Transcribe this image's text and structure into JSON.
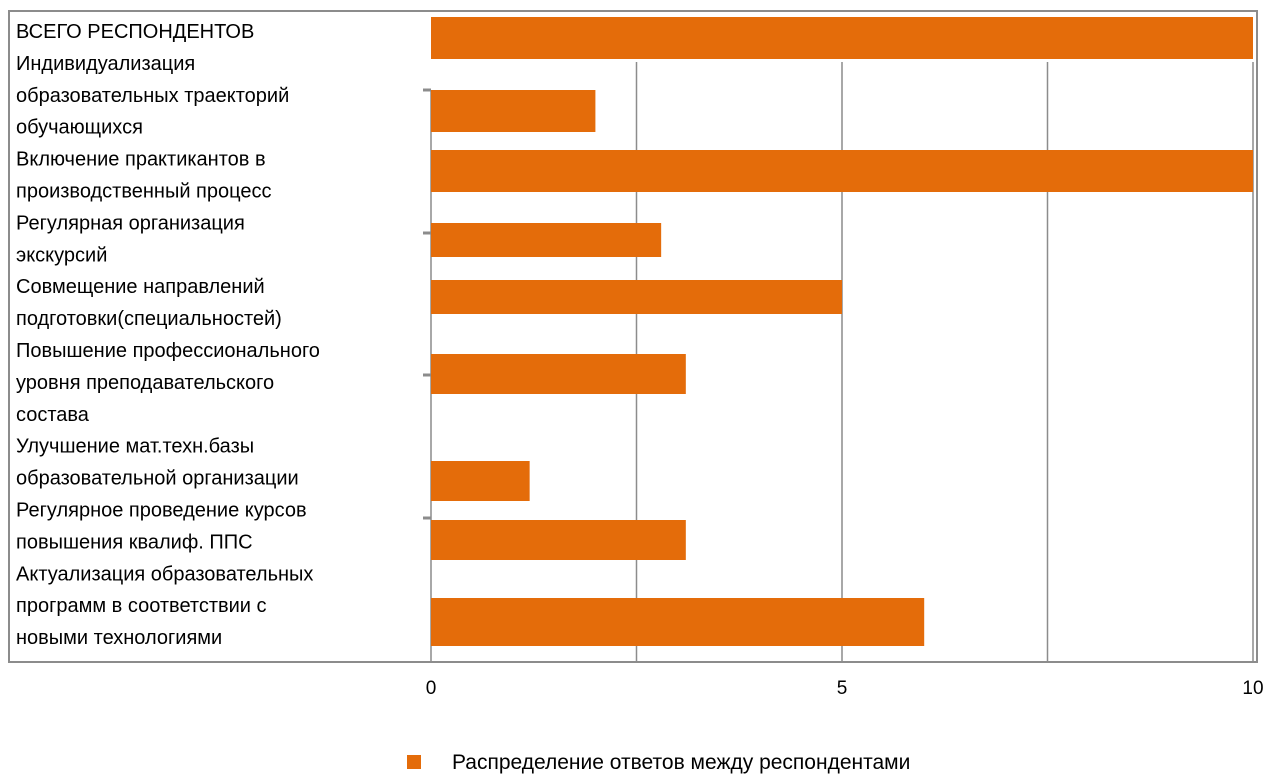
{
  "chart_data": {
    "type": "bar",
    "orientation": "horizontal",
    "title": "",
    "xlabel": "",
    "ylabel": "",
    "xlim": [
      0,
      10
    ],
    "x_ticks": [
      "0",
      "5",
      "10"
    ],
    "legend_position": "bottom",
    "grid": "vertical",
    "categories": [
      "ВСЕГО РЕСПОНДЕНТОВ",
      "Индивидуализация образовательных траекторий обучающихся",
      "Включение практикантов в производственный процесс",
      "Регулярная организация экскурсий",
      "Совмещение направлений подготовки(специальностей)",
      "Повышение профессионального уровня преподавательского состава",
      "Улучшение мат.техн.базы образовательной организации",
      "Регулярное проведение курсов повышения квалиф. ППС",
      "Актуализация образовательных программ в соответствии с новыми технологиями"
    ],
    "category_lines": [
      [
        "ВСЕГО РЕСПОНДЕНТОВ"
      ],
      [
        "Индивидуализация",
        "образовательных траекторий",
        "обучающихся"
      ],
      [
        "Включение практикантов в",
        "производственный процесс"
      ],
      [
        "Регулярная организация",
        "экскурсий"
      ],
      [
        "Совмещение направлений",
        "подготовки(специальностей)"
      ],
      [
        "Повышение профессионального",
        "уровня преподавательского",
        "состава"
      ],
      [
        "Улучшение мат.техн.базы",
        "образовательной организации"
      ],
      [
        "Регулярное проведение курсов",
        "повышения квалиф. ППС"
      ],
      [
        "Актуализация образовательных",
        "программ в соответствии с",
        "новыми технологиями"
      ]
    ],
    "series": [
      {
        "name": "Распределение ответов между респондентами",
        "color": "#E46C0A",
        "values": [
          10,
          2,
          10,
          2.8,
          5,
          3.1,
          1.2,
          3.1,
          6
        ]
      }
    ]
  }
}
